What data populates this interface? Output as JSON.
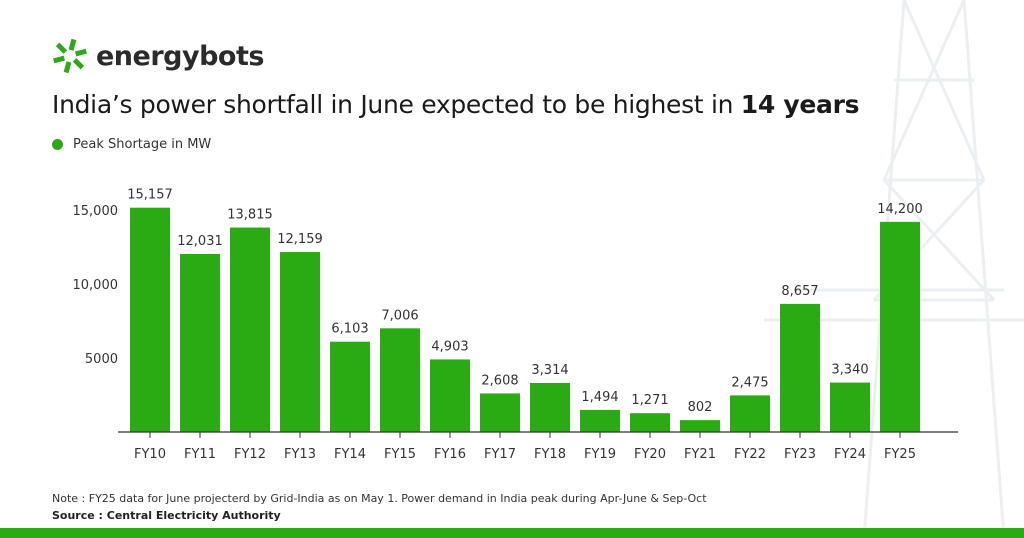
{
  "brand": {
    "name": "energybots",
    "color": "#2aab14"
  },
  "title": {
    "main": "India’s power shortfall in June expected to be highest in ",
    "bold": "14 years"
  },
  "chart_data": {
    "type": "bar",
    "categories": [
      "FY10",
      "FY11",
      "FY12",
      "FY13",
      "FY14",
      "FY15",
      "FY16",
      "FY17",
      "FY18",
      "FY19",
      "FY20",
      "FY21",
      "FY22",
      "FY23",
      "FY24",
      "FY25"
    ],
    "series": [
      {
        "name": "Peak Shortage in MW",
        "values": [
          15157,
          12031,
          13815,
          12159,
          6103,
          7006,
          4903,
          2608,
          3314,
          1494,
          1271,
          802,
          2475,
          8657,
          3340,
          14200
        ],
        "color": "#2aab14"
      }
    ],
    "data_labels": [
      "15,157",
      "12,031",
      "13,815",
      "12,159",
      "6,103",
      "7,006",
      "4,903",
      "2,608",
      "3,314",
      "1,494",
      "1,271",
      "802",
      "2,475",
      "8,657",
      "3,340",
      "14,200"
    ],
    "yticks": [
      {
        "value": 5000,
        "label": "5000"
      },
      {
        "value": 10000,
        "label": "10,000"
      },
      {
        "value": 15000,
        "label": "15,000"
      }
    ],
    "ylim": [
      0,
      15500
    ],
    "grid": false,
    "legend": "top-left"
  },
  "footer": {
    "note": "Note : FY25 data for June projecterd by Grid-India as on May 1. Power demand in India peak during Apr-June & Sep-Oct",
    "source": "Source : Central Electricity Authority"
  }
}
